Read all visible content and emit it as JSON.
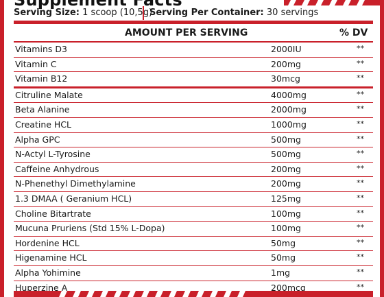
{
  "panel": {
    "title": "Supplement Facts",
    "serving_size_label": "Serving Size:",
    "serving_size_value": "1 scoop (10,5g)",
    "servings_label": "Serving Per Container:",
    "servings_value": "30 servings",
    "col_amount": "AMOUNT PER SERVING",
    "col_dv": "% DV",
    "accent_color": "#c9202a"
  },
  "rows": [
    {
      "name": "Vitamins D3",
      "amount": "2000IU",
      "dv": "**"
    },
    {
      "name": "Vitamin C",
      "amount": "200mg",
      "dv": "**"
    },
    {
      "name": "Vitamin B12",
      "amount": "30mcg",
      "dv": "**"
    },
    {
      "name": "Citruline Malate",
      "amount": "4000mg",
      "dv": "**"
    },
    {
      "name": "Beta Alanine",
      "amount": "2000mg",
      "dv": "**"
    },
    {
      "name": "Creatine HCL",
      "amount": "1000mg",
      "dv": "**"
    },
    {
      "name": "Alpha GPC",
      "amount": "500mg",
      "dv": "**"
    },
    {
      "name": "N-Actyl L-Tyrosine",
      "amount": "500mg",
      "dv": "**"
    },
    {
      "name": "Caffeine Anhydrous",
      "amount": "200mg",
      "dv": "**"
    },
    {
      "name": "N-Phenethyl Dimethylamine",
      "amount": "200mg",
      "dv": "**"
    },
    {
      "name": "1.3 DMAA ( Geranium HCL)",
      "amount": "125mg",
      "dv": "**"
    },
    {
      "name": "Choline Bitartrate",
      "amount": "100mg",
      "dv": "**"
    },
    {
      "name": "Mucuna Pruriens (Std 15% L-Dopa)",
      "amount": "100mg",
      "dv": "**"
    },
    {
      "name": "Hordenine HCL",
      "amount": "50mg",
      "dv": "**"
    },
    {
      "name": "Higenamine HCL",
      "amount": "50mg",
      "dv": "**"
    },
    {
      "name": "Alpha Yohimine",
      "amount": "1mg",
      "dv": "**"
    },
    {
      "name": "Huperzine A",
      "amount": "200mcg",
      "dv": "**"
    }
  ]
}
